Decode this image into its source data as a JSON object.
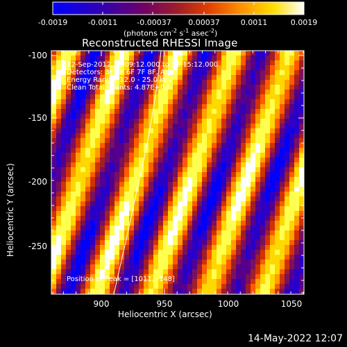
{
  "colorbar": {
    "ticks": [
      "-0.0019",
      "-0.0011",
      "-0.00037",
      "0.00037",
      "0.0011",
      "0.0019"
    ],
    "units_label": "(photons cm",
    "units_exp1": "-2",
    "units_mid": " s",
    "units_exp2": "-1",
    "units_mid2": " asec",
    "units_exp3": "-2",
    "units_close": ")"
  },
  "plot": {
    "title": "Reconstructed RHESSI Image",
    "xlabel": "Heliocentric X (arcsec)",
    "ylabel": "Heliocentric Y (arcsec)",
    "xticks": [
      "900",
      "950",
      "1000",
      "1050"
    ],
    "yticks": [
      "-100",
      "-150",
      "-200",
      "-250"
    ]
  },
  "info": {
    "line1": "12-Sep-2012 21:09:12.000 to 21:15:12.000",
    "line2": "Detectors: 3F 5F 6F 7F 8F, Att 0",
    "line3": "Energy Range: 12.0 - 25.0 keV",
    "line4": "Clean      Total counts: 4.87E+03",
    "peak": "Position of Peak = [1011, -148]"
  },
  "timestamp": "14-May-2022 12:07",
  "colors": {
    "colormap": [
      "#0000ff",
      "#2a00c8",
      "#55008c",
      "#7a1060",
      "#a01e28",
      "#d23200",
      "#ff5a00",
      "#ffa000",
      "#ffd800",
      "#ffff50",
      "#ffffff"
    ]
  }
}
